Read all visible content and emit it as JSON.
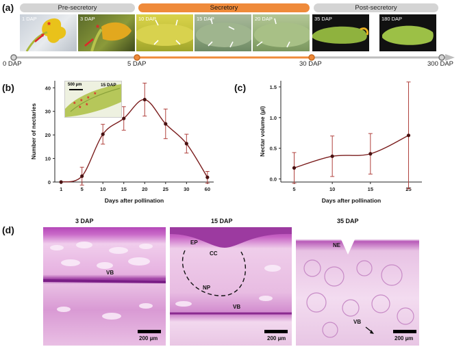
{
  "panel_a": {
    "label": "(a)",
    "phases": [
      {
        "name": "Pre-secretory",
        "color": "#d4d4d4"
      },
      {
        "name": "Secretory",
        "color": "#ef8a3a"
      },
      {
        "name": "Post-secretory",
        "color": "#d4d4d4"
      }
    ],
    "photos": [
      "1 DAP",
      "3 DAP",
      "10 DAP",
      "15 DAP",
      "20 DAP",
      "35 DAP",
      "180 DAP"
    ],
    "timeline_ticks": [
      "0 DAP",
      "5 DAP",
      "30 DAP",
      "300 DAP"
    ]
  },
  "panel_b": {
    "label": "(b)",
    "inset_label": "15 DAP",
    "inset_scale": "500 µm"
  },
  "panel_c": {
    "label": "(c)"
  },
  "panel_d": {
    "label": "(d)",
    "images": [
      {
        "title": "3 DAP",
        "annotations": [
          "VB"
        ],
        "scale": "200 µm"
      },
      {
        "title": "15 DAP",
        "annotations": [
          "EP",
          "CC",
          "NP",
          "VB"
        ],
        "scale": "200 µm"
      },
      {
        "title": "35 DAP",
        "annotations": [
          "NE",
          "VB"
        ],
        "scale": "200 µm"
      }
    ]
  },
  "colors": {
    "curve": "#7a1c1c",
    "point": "#4a1212",
    "error_bar": "#b0403c",
    "secretory": "#ef8a3a",
    "stain_light": "#f4d6f0",
    "stain_dark": "#b447b8"
  },
  "chart_data": [
    {
      "type": "line",
      "xlabel": "Days after pollination",
      "ylabel": "Number of nectaries",
      "categories": [
        "1",
        "5",
        "10",
        "15",
        "20",
        "25",
        "30",
        "60"
      ],
      "values": [
        0,
        2.5,
        20.3,
        27,
        35,
        24.7,
        16.3,
        2
      ],
      "errors": [
        0,
        3.8,
        4.2,
        5,
        7,
        6.3,
        4,
        2.5
      ],
      "yticks": [
        0,
        10,
        20,
        30,
        40
      ],
      "ylim": [
        0,
        43
      ],
      "grid": false
    },
    {
      "type": "line",
      "xlabel": "Days after pollination",
      "ylabel": "Nectar volume (µl)",
      "categories": [
        "5",
        "10",
        "15",
        "25"
      ],
      "values": [
        0.18,
        0.37,
        0.41,
        0.71
      ],
      "errors": [
        0.25,
        0.33,
        0.33,
        0.87
      ],
      "yticks": [
        "0.0",
        "0.5",
        "1.0",
        "1.5"
      ],
      "ylim": [
        -0.05,
        1.6
      ],
      "grid": false
    }
  ]
}
